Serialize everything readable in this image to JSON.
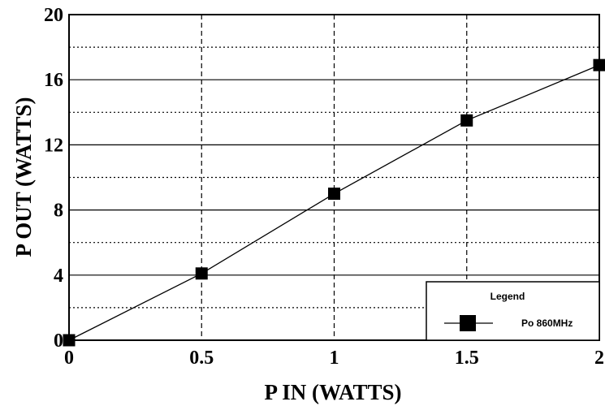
{
  "chart_data": {
    "type": "line",
    "title": "",
    "xlabel": "P IN (WATTS)",
    "ylabel": "P OUT (WATTS)",
    "xlim": [
      0,
      2
    ],
    "ylim": [
      0,
      20
    ],
    "x_ticks": [
      0,
      0.5,
      1,
      1.5,
      2
    ],
    "x_tick_labels": [
      "0",
      "0.5",
      "1",
      "1.5",
      "2"
    ],
    "y_ticks": [
      0,
      4,
      8,
      12,
      16,
      20
    ],
    "y_tick_labels": [
      "0",
      "4",
      "8",
      "12",
      "16",
      "20"
    ],
    "grid": true,
    "legend": {
      "title": "Legend",
      "placement": "bottom-right",
      "entries": [
        "Po 860MHz"
      ]
    },
    "series": [
      {
        "name": "Po 860MHz",
        "marker": "square",
        "color": "#000000",
        "x": [
          0,
          0.5,
          1,
          1.5,
          2
        ],
        "y": [
          0,
          4.1,
          9.0,
          13.5,
          16.9
        ]
      }
    ]
  }
}
